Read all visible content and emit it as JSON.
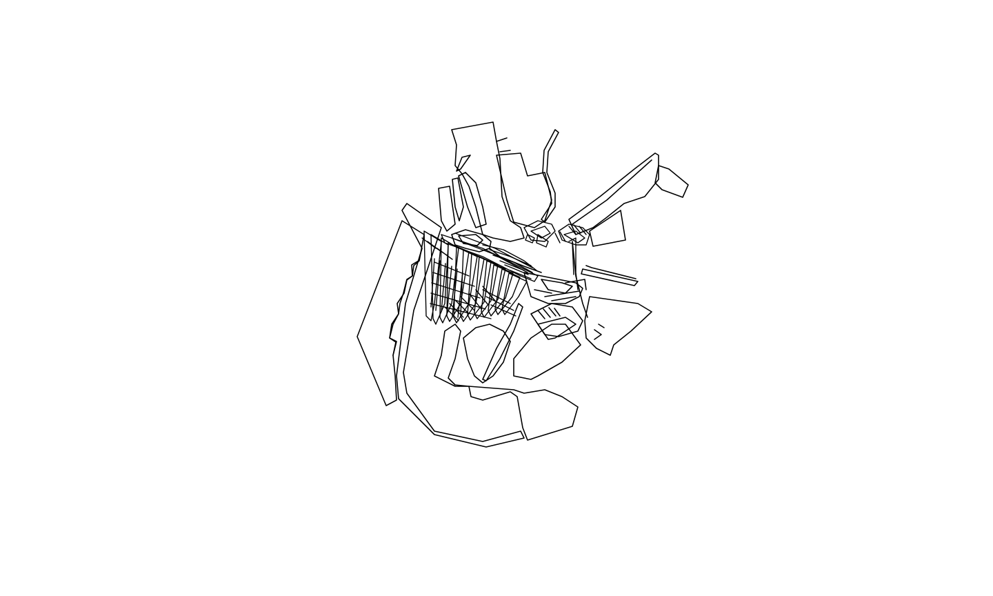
{
  "map": {
    "kind": "outline map of polygon features",
    "line_color": "#000000",
    "fill_color": "none",
    "background_color": "#ffffff",
    "labels": [],
    "legend": null,
    "axes": null
  }
}
